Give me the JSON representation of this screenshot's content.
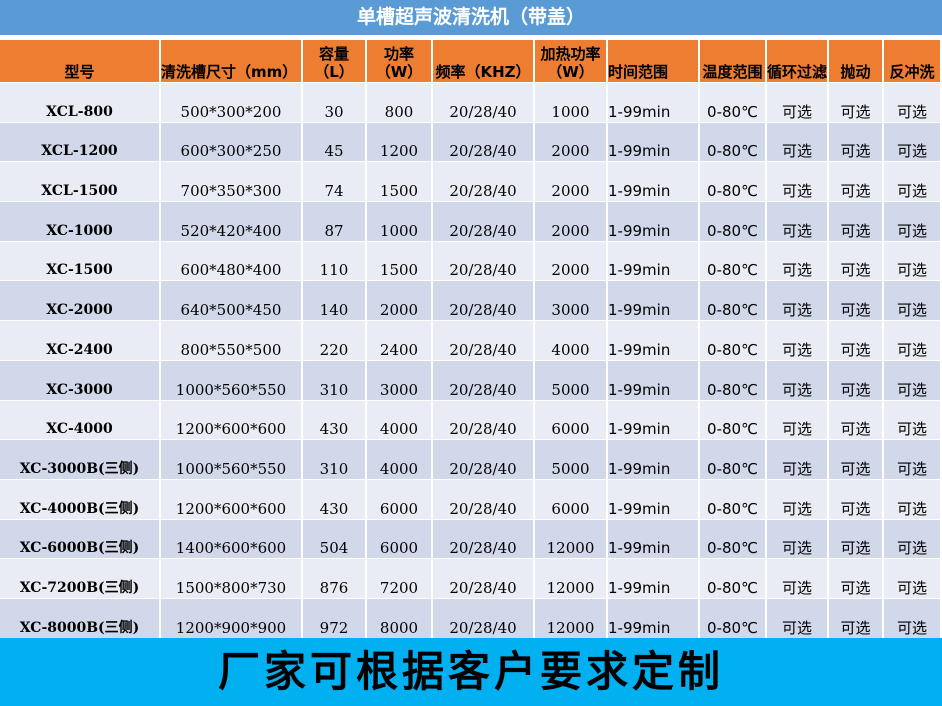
{
  "title": "单槽超声波清洗机（带盖）",
  "headers": [
    "型号",
    "清洗槽尺寸（mm）",
    "容量（L）",
    "功率（W）",
    "频率（KHZ）",
    "加热功率（W）",
    "时间范围",
    "温度范围",
    "循环过滤",
    "抛动",
    "反冲洗"
  ],
  "rows": [
    [
      "XCL-800",
      "500*300*200",
      "30",
      "800",
      "20/28/40",
      "1000",
      "1-99min",
      "0-80℃",
      "可选",
      "可选",
      "可选"
    ],
    [
      "XCL-1200",
      "600*300*250",
      "45",
      "1200",
      "20/28/40",
      "2000",
      "1-99min",
      "0-80℃",
      "可选",
      "可选",
      "可选"
    ],
    [
      "XCL-1500",
      "700*350*300",
      "74",
      "1500",
      "20/28/40",
      "2000",
      "1-99min",
      "0-80℃",
      "可选",
      "可选",
      "可选"
    ],
    [
      "XC-1000",
      "520*420*400",
      "87",
      "1000",
      "20/28/40",
      "2000",
      "1-99min",
      "0-80℃",
      "可选",
      "可选",
      "可选"
    ],
    [
      "XC-1500",
      "600*480*400",
      "110",
      "1500",
      "20/28/40",
      "2000",
      "1-99min",
      "0-80℃",
      "可选",
      "可选",
      "可选"
    ],
    [
      "XC-2000",
      "640*500*450",
      "140",
      "2000",
      "20/28/40",
      "3000",
      "1-99min",
      "0-80℃",
      "可选",
      "可选",
      "可选"
    ],
    [
      "XC-2400",
      "800*550*500",
      "220",
      "2400",
      "20/28/40",
      "4000",
      "1-99min",
      "0-80℃",
      "可选",
      "可选",
      "可选"
    ],
    [
      "XC-3000",
      "1000*560*550",
      "310",
      "3000",
      "20/28/40",
      "5000",
      "1-99min",
      "0-80℃",
      "可选",
      "可选",
      "可选"
    ],
    [
      "XC-4000",
      "1200*600*600",
      "430",
      "4000",
      "20/28/40",
      "6000",
      "1-99min",
      "0-80℃",
      "可选",
      "可选",
      "可选"
    ],
    [
      "XC-3000B(三侧)",
      "1000*560*550",
      "310",
      "4000",
      "20/28/40",
      "5000",
      "1-99min",
      "0-80℃",
      "可选",
      "可选",
      "可选"
    ],
    [
      "XC-4000B(三侧)",
      "1200*600*600",
      "430",
      "6000",
      "20/28/40",
      "6000",
      "1-99min",
      "0-80℃",
      "可选",
      "可选",
      "可选"
    ],
    [
      "XC-6000B(三侧)",
      "1400*600*600",
      "504",
      "6000",
      "20/28/40",
      "12000",
      "1-99min",
      "0-80℃",
      "可选",
      "可选",
      "可选"
    ],
    [
      "XC-7200B(三侧)",
      "1500*800*730",
      "876",
      "7200",
      "20/28/40",
      "12000",
      "1-99min",
      "0-80℃",
      "可选",
      "可选",
      "可选"
    ],
    [
      "XC-8000B(三侧)",
      "1200*900*900",
      "972",
      "8000",
      "20/28/40",
      "12000",
      "1-99min",
      "0-80℃",
      "可选",
      "可选",
      "可选"
    ]
  ],
  "footer": "厂家可根据客户要求定制"
}
